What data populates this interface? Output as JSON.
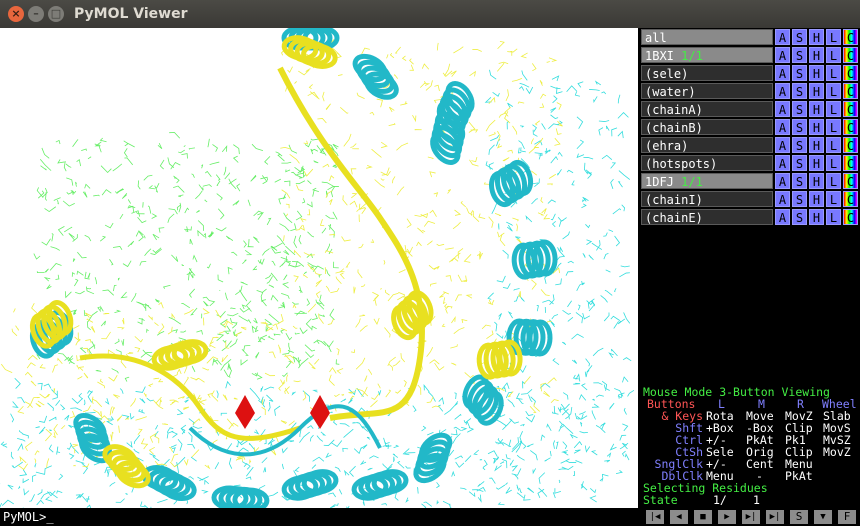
{
  "window": {
    "title": "PyMOL Viewer"
  },
  "objects": [
    {
      "name": "all"
    },
    {
      "name": "1BXI",
      "state": "1/1"
    },
    {
      "name": "(sele)"
    },
    {
      "name": "(water)"
    },
    {
      "name": "(chainA)"
    },
    {
      "name": "(chainB)"
    },
    {
      "name": "(ehra)"
    },
    {
      "name": "(hotspots)"
    },
    {
      "name": "1DFJ",
      "state": "1/1"
    },
    {
      "name": "(chainI)"
    },
    {
      "name": "(chainE)"
    }
  ],
  "object_buttons": [
    "A",
    "S",
    "H",
    "L",
    "C"
  ],
  "mouse_panel": {
    "mode_label": "Mouse Mode",
    "mode": "3-Button Viewing",
    "header": [
      "Buttons",
      "L",
      "M",
      "R",
      "Wheel"
    ],
    "rows": [
      {
        "label": "& Keys",
        "cells": [
          "Rota",
          "Move",
          "MovZ",
          "Slab"
        ]
      },
      {
        "label": "Shft",
        "cells": [
          "+Box",
          "-Box",
          "Clip",
          "MovS"
        ]
      },
      {
        "label": "Ctrl",
        "cells": [
          "+/-",
          "PkAt",
          "Pk1",
          "MvSZ"
        ]
      },
      {
        "label": "CtSh",
        "cells": [
          "Sele",
          "Orig",
          "Clip",
          "MovZ"
        ]
      },
      {
        "label": "SnglClk",
        "cells": [
          "+/-",
          "Cent",
          "Menu"
        ]
      },
      {
        "label": "DblClk",
        "cells": [
          "Menu",
          "-",
          "PkAt"
        ]
      }
    ],
    "selecting": "Selecting Residues",
    "state_label": "State",
    "state_current": "1/",
    "state_count": "1"
  },
  "command_line": {
    "prompt": "PyMOL>_"
  },
  "playback_labels": [
    "S",
    "F"
  ]
}
